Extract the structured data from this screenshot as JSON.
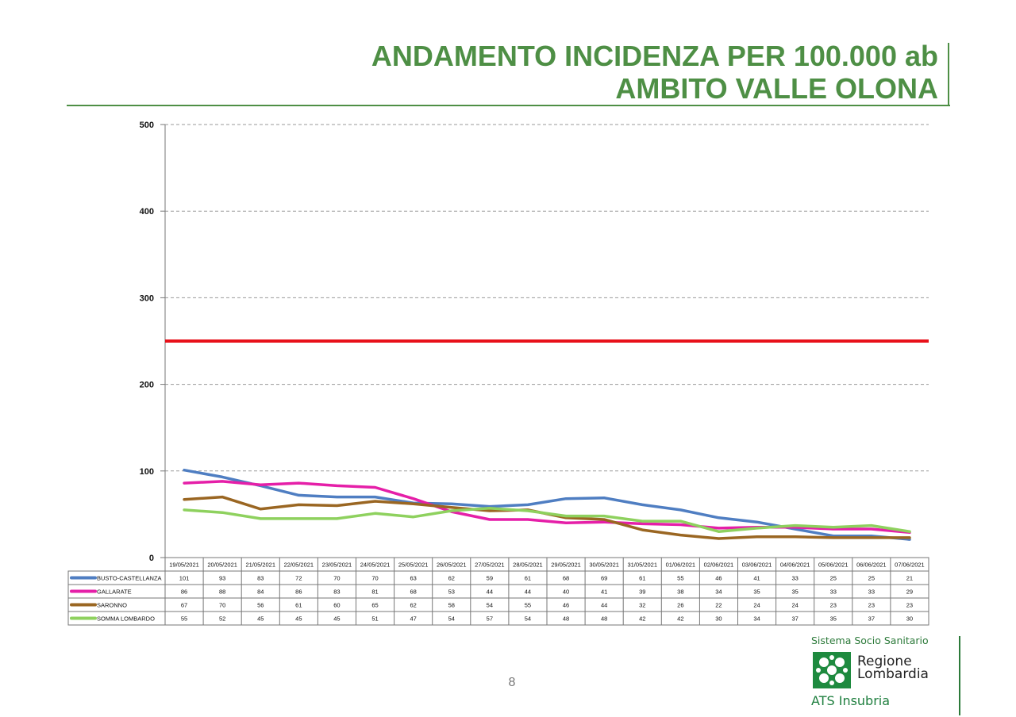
{
  "title": {
    "line1": "ANDAMENTO INCIDENZA PER 100.000 ab",
    "line2": "AMBITO VALLE OLONA"
  },
  "page_number": "8",
  "logo": {
    "top_text": "Sistema Socio Sanitario",
    "name_line1": "Regione",
    "name_line2": "Lombardia",
    "bottom_text": "ATS Insubria"
  },
  "colors": {
    "title_green": "#4e8f45",
    "threshold_red": "#e8111a",
    "busto": "#4f7ec2",
    "gallarate": "#e51fa8",
    "saronno": "#9a6622",
    "somma": "#8ed15e"
  },
  "chart_data": {
    "type": "line",
    "ylim": [
      0,
      500
    ],
    "yticks": [
      "0",
      "100",
      "200",
      "300",
      "400",
      "500"
    ],
    "grid": true,
    "threshold": 250,
    "categories": [
      "19/05/2021",
      "20/05/2021",
      "21/05/2021",
      "22/05/2021",
      "23/05/2021",
      "24/05/2021",
      "25/05/2021",
      "26/05/2021",
      "27/05/2021",
      "28/05/2021",
      "29/05/2021",
      "30/05/2021",
      "31/05/2021",
      "01/06/2021",
      "02/06/2021",
      "03/06/2021",
      "04/06/2021",
      "05/06/2021",
      "06/06/2021",
      "07/06/2021"
    ],
    "series": [
      {
        "name": "BUSTO-CASTELLANZA",
        "color": "#4f7ec2",
        "values": [
          101,
          93,
          83,
          72,
          70,
          70,
          63,
          62,
          59,
          61,
          68,
          69,
          61,
          55,
          46,
          41,
          33,
          25,
          25,
          21
        ]
      },
      {
        "name": "GALLARATE",
        "color": "#e51fa8",
        "values": [
          86,
          88,
          84,
          86,
          83,
          81,
          68,
          53,
          44,
          44,
          40,
          41,
          39,
          38,
          34,
          35,
          35,
          33,
          33,
          29
        ]
      },
      {
        "name": "SARONNO",
        "color": "#9a6622",
        "values": [
          67,
          70,
          56,
          61,
          60,
          65,
          62,
          58,
          54,
          55,
          46,
          44,
          32,
          26,
          22,
          24,
          24,
          23,
          23,
          23
        ]
      },
      {
        "name": "SOMMA LOMBARDO",
        "color": "#8ed15e",
        "values": [
          55,
          52,
          45,
          45,
          45,
          51,
          47,
          54,
          57,
          54,
          48,
          48,
          42,
          42,
          30,
          34,
          37,
          35,
          37,
          30
        ]
      }
    ]
  }
}
